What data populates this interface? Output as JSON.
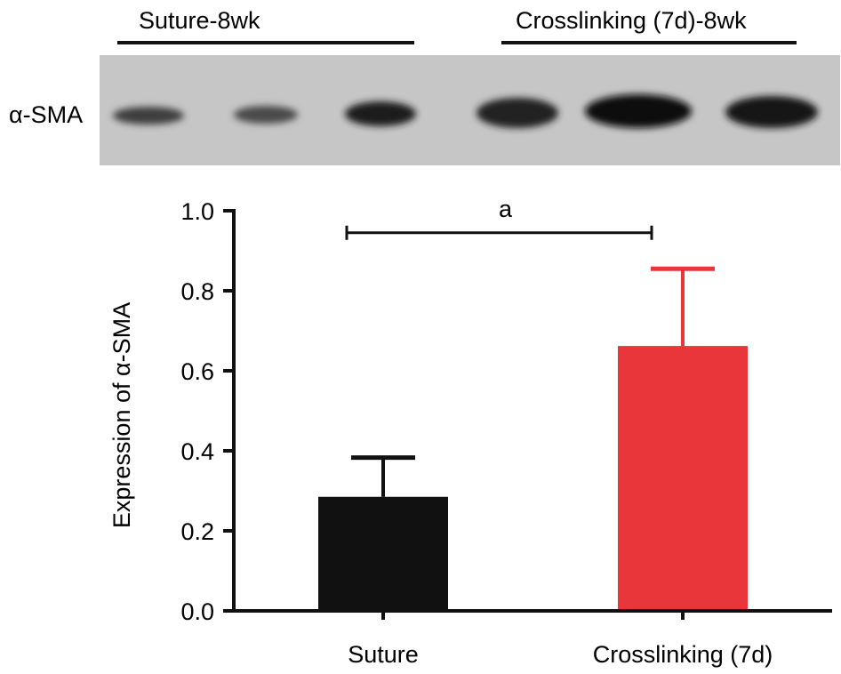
{
  "blot": {
    "group_labels": [
      "Suture-8wk",
      "Crosslinking (7d)-8wk"
    ],
    "protein_label": "α-SMA"
  },
  "chart_data": {
    "type": "bar",
    "categories": [
      "Suture",
      "Crosslinking (7d)"
    ],
    "values": [
      0.285,
      0.662
    ],
    "error": [
      0.098,
      0.193
    ],
    "colors": [
      "#111111",
      "#e8363a"
    ],
    "title": "",
    "xlabel": "",
    "ylabel": "Expression of α-SMA",
    "ylim": [
      0,
      1.0
    ],
    "yticks": [
      0.0,
      0.2,
      0.4,
      0.6,
      0.8,
      1.0
    ],
    "ytick_labels": [
      "0.0",
      "0.2",
      "0.4",
      "0.6",
      "0.8",
      "1.0"
    ],
    "significance": {
      "label": "a",
      "between": [
        "Suture",
        "Crosslinking (7d)"
      ],
      "y": 0.945
    },
    "grid": false,
    "legend": "none"
  }
}
